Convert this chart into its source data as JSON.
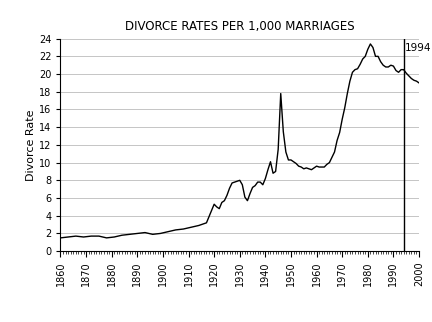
{
  "title": "DIVORCE RATES PER 1,000 MARRIAGES",
  "ylabel": "Divorce Rate",
  "xlim": [
    1860,
    2000
  ],
  "ylim": [
    0,
    24
  ],
  "yticks": [
    0,
    2,
    4,
    6,
    8,
    10,
    12,
    14,
    16,
    18,
    20,
    22,
    24
  ],
  "xticks": [
    1860,
    1870,
    1880,
    1890,
    1900,
    1910,
    1920,
    1930,
    1940,
    1950,
    1960,
    1970,
    1980,
    1990,
    2000
  ],
  "vline_x": 1994,
  "vline_label": "1994",
  "line_color": "#000000",
  "grid_color": "#bbbbbb",
  "background_color": "#ffffff",
  "title_fontsize": 8.5,
  "axis_label_fontsize": 8,
  "tick_label_fontsize": 7,
  "years": [
    1860,
    1863,
    1866,
    1869,
    1872,
    1875,
    1878,
    1881,
    1884,
    1887,
    1890,
    1893,
    1896,
    1899,
    1902,
    1905,
    1908,
    1911,
    1914,
    1917,
    1920,
    1921,
    1922,
    1923,
    1924,
    1925,
    1926,
    1927,
    1928,
    1929,
    1930,
    1931,
    1932,
    1933,
    1934,
    1935,
    1936,
    1937,
    1938,
    1939,
    1940,
    1941,
    1942,
    1943,
    1944,
    1945,
    1946,
    1947,
    1948,
    1949,
    1950,
    1951,
    1952,
    1953,
    1954,
    1955,
    1956,
    1957,
    1958,
    1959,
    1960,
    1961,
    1962,
    1963,
    1964,
    1965,
    1966,
    1967,
    1968,
    1969,
    1970,
    1971,
    1972,
    1973,
    1974,
    1975,
    1976,
    1977,
    1978,
    1979,
    1980,
    1981,
    1982,
    1983,
    1984,
    1985,
    1986,
    1987,
    1988,
    1989,
    1990,
    1991,
    1992,
    1993,
    1994,
    1995,
    1996,
    1997,
    1998,
    1999,
    2000
  ],
  "rates": [
    1.5,
    1.6,
    1.7,
    1.6,
    1.7,
    1.7,
    1.5,
    1.6,
    1.8,
    1.9,
    2.0,
    2.1,
    1.9,
    2.0,
    2.2,
    2.4,
    2.5,
    2.7,
    2.9,
    3.2,
    5.3,
    5.0,
    4.8,
    5.5,
    5.7,
    6.3,
    7.1,
    7.7,
    7.8,
    7.9,
    8.0,
    7.5,
    6.1,
    5.7,
    6.5,
    7.2,
    7.4,
    7.8,
    7.8,
    7.5,
    8.2,
    9.2,
    10.1,
    8.8,
    9.0,
    11.5,
    17.8,
    13.5,
    11.2,
    10.3,
    10.3,
    10.1,
    9.9,
    9.6,
    9.5,
    9.3,
    9.4,
    9.3,
    9.2,
    9.4,
    9.6,
    9.5,
    9.5,
    9.5,
    9.8,
    10.0,
    10.6,
    11.2,
    12.5,
    13.4,
    14.9,
    16.2,
    17.8,
    19.2,
    20.2,
    20.5,
    20.6,
    21.1,
    21.7,
    22.0,
    22.8,
    23.4,
    23.0,
    22.0,
    22.0,
    21.4,
    21.0,
    20.8,
    20.8,
    21.0,
    20.9,
    20.4,
    20.2,
    20.5,
    20.5,
    20.1,
    19.8,
    19.5,
    19.3,
    19.2,
    19.0
  ]
}
